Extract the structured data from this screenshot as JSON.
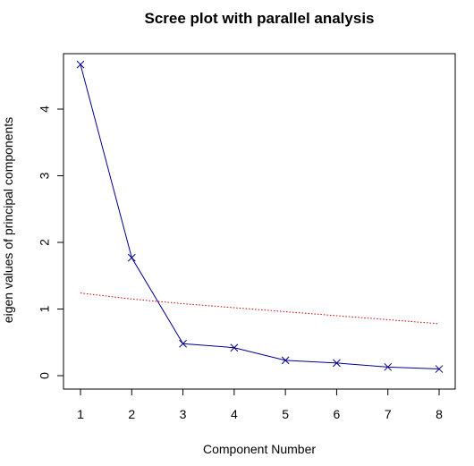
{
  "chart_data": {
    "type": "line",
    "title": "Scree plot with parallel analysis",
    "xlabel": "Component Number",
    "ylabel": "eigen values of principal components",
    "xlim": [
      1,
      8
    ],
    "ylim": [
      0,
      4.7
    ],
    "x_ticks": [
      1,
      2,
      3,
      4,
      5,
      6,
      7,
      8
    ],
    "y_ticks": [
      0,
      1,
      2,
      3,
      4
    ],
    "grid": false,
    "legend": "none",
    "series": [
      {
        "style": "line-with-x-markers",
        "color": "#00008b",
        "x": [
          1,
          2,
          3,
          4,
          5,
          6,
          7,
          8
        ],
        "y": [
          4.67,
          1.77,
          0.48,
          0.42,
          0.23,
          0.19,
          0.13,
          0.1
        ]
      },
      {
        "style": "dotted",
        "color": "#cc0000",
        "x": [
          1,
          2,
          3,
          4,
          5,
          6,
          7,
          8
        ],
        "y": [
          1.24,
          1.15,
          1.08,
          1.02,
          0.96,
          0.9,
          0.84,
          0.78
        ]
      }
    ]
  }
}
